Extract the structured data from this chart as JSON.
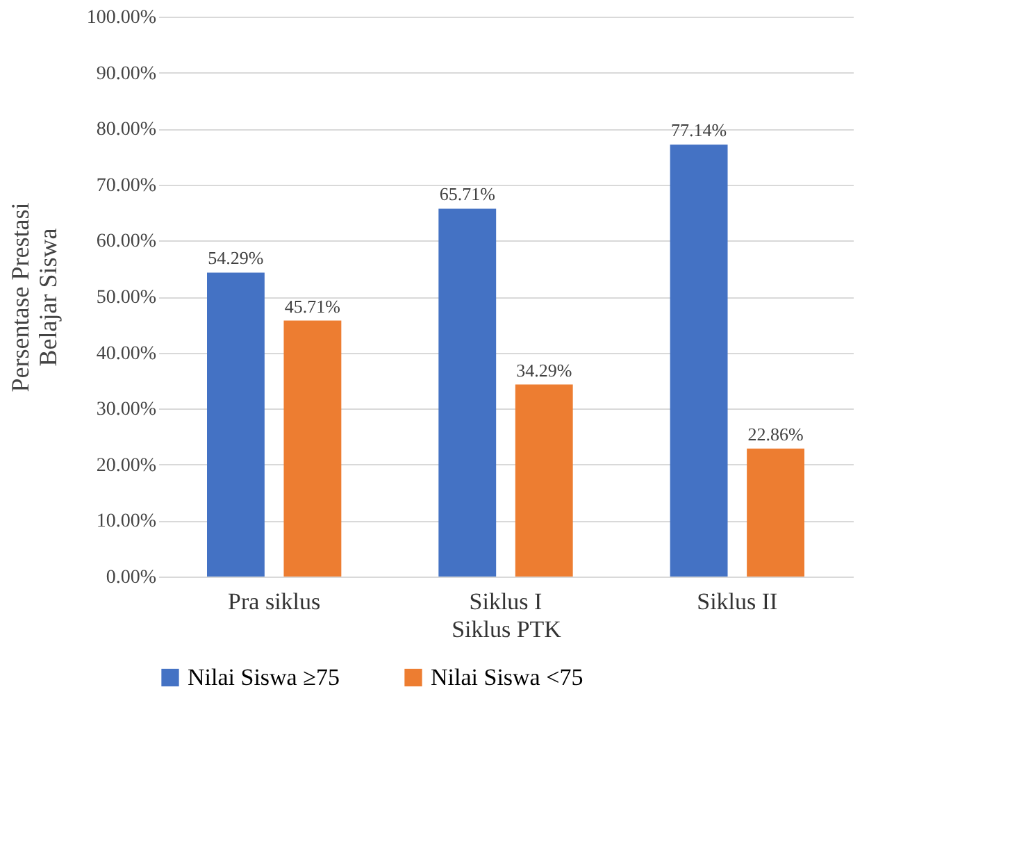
{
  "chart_data": {
    "type": "bar",
    "xlabel": "Siklus PTK",
    "ylabel": "Persentase Prestasi\nBelajar  Siswa",
    "categories": [
      "Pra siklus",
      "Siklus I",
      "Siklus II"
    ],
    "series": [
      {
        "name": "Nilai  Siswa ≥75",
        "color": "#4472c4",
        "values": [
          54.29,
          65.71,
          77.14
        ],
        "value_labels": [
          "54.29%",
          "65.71%",
          "77.14%"
        ]
      },
      {
        "name": "Nilai Siswa <75",
        "color": "#ed7d31",
        "values": [
          45.71,
          34.29,
          22.86
        ],
        "value_labels": [
          "45.71%",
          "34.29%",
          "22.86%"
        ]
      }
    ],
    "ylim": [
      0,
      100
    ],
    "yticks": [
      {
        "value": 0,
        "label": "0.00%"
      },
      {
        "value": 10,
        "label": "10.00%"
      },
      {
        "value": 20,
        "label": "20.00%"
      },
      {
        "value": 30,
        "label": "30.00%"
      },
      {
        "value": 40,
        "label": "40.00%"
      },
      {
        "value": 50,
        "label": "50.00%"
      },
      {
        "value": 60,
        "label": "60.00%"
      },
      {
        "value": 70,
        "label": "70.00%"
      },
      {
        "value": 80,
        "label": "80.00%"
      },
      {
        "value": 90,
        "label": "90.00%"
      },
      {
        "value": 100,
        "label": "100.00%"
      }
    ],
    "grid": "y",
    "legend": "bottom"
  }
}
